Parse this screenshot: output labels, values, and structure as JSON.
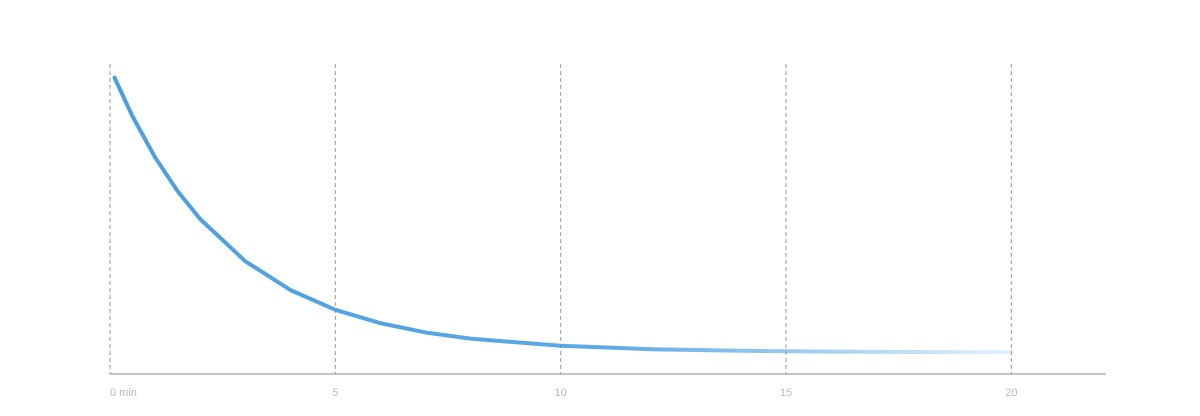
{
  "chart_data": {
    "type": "line",
    "x": [
      0.1,
      0.5,
      1,
      1.5,
      2,
      3,
      4,
      5,
      6,
      7,
      8,
      10,
      12,
      14,
      16,
      18,
      20
    ],
    "values": [
      95.6,
      83.1,
      69.9,
      59.0,
      50.0,
      36.4,
      27.1,
      20.7,
      16.4,
      13.4,
      11.4,
      9.1,
      8.0,
      7.5,
      7.2,
      7.1,
      7.0
    ],
    "color": "#4a9fe3",
    "xlim": [
      0,
      22.1
    ],
    "ylim": [
      0,
      100
    ],
    "xticks": [
      {
        "value": 0,
        "label": "0 min"
      },
      5,
      10,
      15,
      20
    ],
    "grid": true
  }
}
